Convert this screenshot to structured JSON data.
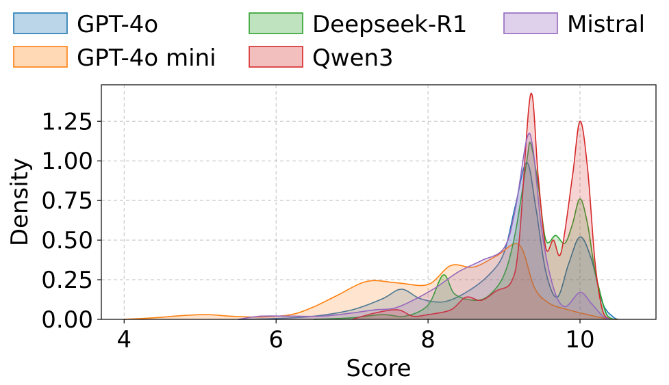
{
  "chart_data": {
    "type": "area",
    "title": "",
    "xlabel": "Score",
    "ylabel": "Density",
    "xlim": [
      3.7,
      11.0
    ],
    "ylim": [
      0,
      1.48
    ],
    "xticks": [
      4,
      6,
      8,
      10
    ],
    "yticks": [
      0.0,
      0.25,
      0.5,
      0.75,
      1.0,
      1.25
    ],
    "xtick_labels": [
      "4",
      "6",
      "8",
      "10"
    ],
    "ytick_labels": [
      "0.00",
      "0.25",
      "0.50",
      "0.75",
      "1.00",
      "1.25"
    ],
    "grid": true,
    "legend_position": "top",
    "series": [
      {
        "name": "GPT-4o",
        "color": "#1f77b4",
        "points": [
          [
            5.5,
            0
          ],
          [
            6.0,
            0.005
          ],
          [
            6.5,
            0.02
          ],
          [
            7.0,
            0.06
          ],
          [
            7.4,
            0.13
          ],
          [
            7.65,
            0.19
          ],
          [
            7.9,
            0.13
          ],
          [
            8.2,
            0.11
          ],
          [
            8.5,
            0.17
          ],
          [
            8.8,
            0.28
          ],
          [
            9.0,
            0.42
          ],
          [
            9.15,
            0.72
          ],
          [
            9.3,
            0.99
          ],
          [
            9.42,
            0.7
          ],
          [
            9.55,
            0.3
          ],
          [
            9.7,
            0.14
          ],
          [
            9.85,
            0.35
          ],
          [
            10.0,
            0.52
          ],
          [
            10.15,
            0.38
          ],
          [
            10.3,
            0.1
          ],
          [
            10.45,
            0.01
          ],
          [
            10.5,
            0
          ]
        ]
      },
      {
        "name": "GPT-4o mini",
        "color": "#ff7f0e",
        "points": [
          [
            4.0,
            0
          ],
          [
            4.4,
            0.01
          ],
          [
            4.8,
            0.025
          ],
          [
            5.1,
            0.03
          ],
          [
            5.4,
            0.02
          ],
          [
            5.8,
            0.015
          ],
          [
            6.2,
            0.03
          ],
          [
            6.5,
            0.08
          ],
          [
            6.8,
            0.15
          ],
          [
            7.2,
            0.24
          ],
          [
            7.6,
            0.23
          ],
          [
            8.0,
            0.22
          ],
          [
            8.3,
            0.34
          ],
          [
            8.6,
            0.33
          ],
          [
            8.9,
            0.4
          ],
          [
            9.2,
            0.47
          ],
          [
            9.4,
            0.2
          ],
          [
            9.6,
            0.1
          ],
          [
            9.85,
            0.06
          ],
          [
            10.1,
            0.03
          ],
          [
            10.35,
            0.005
          ],
          [
            10.5,
            0
          ]
        ]
      },
      {
        "name": "Deepseek-R1",
        "color": "#2ca02c",
        "points": [
          [
            6.5,
            0
          ],
          [
            7.0,
            0.01
          ],
          [
            7.4,
            0.03
          ],
          [
            7.7,
            0.02
          ],
          [
            8.0,
            0.09
          ],
          [
            8.2,
            0.28
          ],
          [
            8.35,
            0.16
          ],
          [
            8.6,
            0.12
          ],
          [
            8.8,
            0.15
          ],
          [
            9.0,
            0.28
          ],
          [
            9.15,
            0.55
          ],
          [
            9.3,
            1.0
          ],
          [
            9.35,
            1.11
          ],
          [
            9.45,
            0.85
          ],
          [
            9.55,
            0.5
          ],
          [
            9.68,
            0.53
          ],
          [
            9.8,
            0.48
          ],
          [
            9.9,
            0.6
          ],
          [
            10.0,
            0.76
          ],
          [
            10.1,
            0.6
          ],
          [
            10.2,
            0.3
          ],
          [
            10.35,
            0.03
          ],
          [
            10.45,
            0
          ]
        ]
      },
      {
        "name": "Qwen3",
        "color": "#d62728",
        "points": [
          [
            7.0,
            0
          ],
          [
            7.3,
            0.04
          ],
          [
            7.6,
            0.06
          ],
          [
            7.8,
            0.02
          ],
          [
            8.0,
            0.03
          ],
          [
            8.3,
            0.06
          ],
          [
            8.5,
            0.14
          ],
          [
            8.7,
            0.12
          ],
          [
            8.9,
            0.18
          ],
          [
            9.1,
            0.24
          ],
          [
            9.2,
            0.5
          ],
          [
            9.35,
            1.42
          ],
          [
            9.45,
            0.9
          ],
          [
            9.55,
            0.45
          ],
          [
            9.65,
            0.5
          ],
          [
            9.75,
            0.42
          ],
          [
            9.9,
            0.9
          ],
          [
            10.0,
            1.25
          ],
          [
            10.1,
            0.95
          ],
          [
            10.2,
            0.35
          ],
          [
            10.3,
            0.05
          ],
          [
            10.4,
            0
          ]
        ]
      },
      {
        "name": "Mistral",
        "color": "#9467bd",
        "points": [
          [
            5.5,
            0
          ],
          [
            5.8,
            0.02
          ],
          [
            6.2,
            0.02
          ],
          [
            6.6,
            0.02
          ],
          [
            7.0,
            0.04
          ],
          [
            7.3,
            0.06
          ],
          [
            7.55,
            0.07
          ],
          [
            7.8,
            0.12
          ],
          [
            8.1,
            0.2
          ],
          [
            8.4,
            0.3
          ],
          [
            8.7,
            0.37
          ],
          [
            9.0,
            0.45
          ],
          [
            9.15,
            0.7
          ],
          [
            9.3,
            1.14
          ],
          [
            9.38,
            1.08
          ],
          [
            9.5,
            0.55
          ],
          [
            9.65,
            0.2
          ],
          [
            9.8,
            0.08
          ],
          [
            10.0,
            0.17
          ],
          [
            10.15,
            0.1
          ],
          [
            10.3,
            0.02
          ],
          [
            10.4,
            0
          ]
        ]
      }
    ]
  }
}
